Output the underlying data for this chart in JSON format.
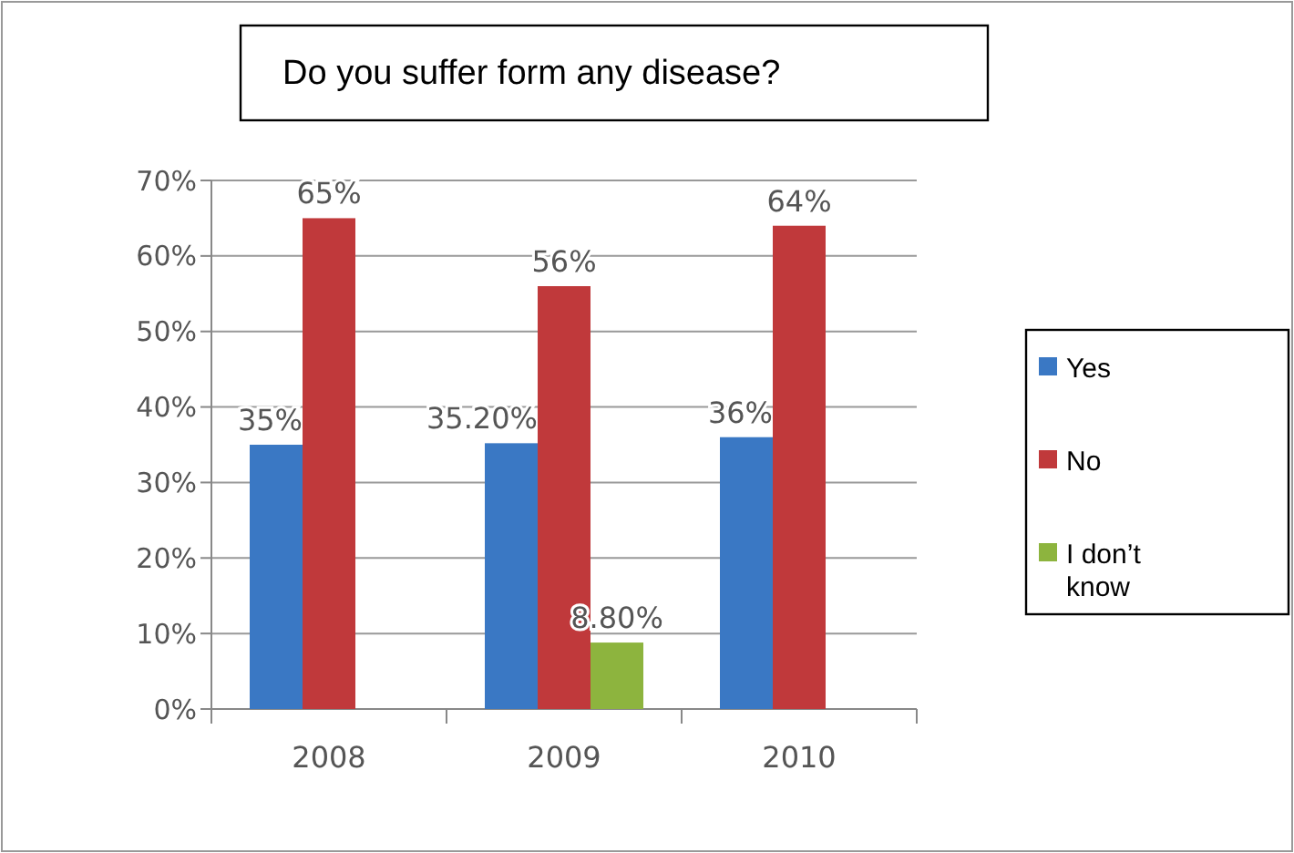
{
  "chart_data": {
    "type": "bar",
    "title": "Do you suffer form any disease?",
    "categories": [
      "2008",
      "2009",
      "2010"
    ],
    "series": [
      {
        "name": "Yes",
        "color": "#3a78c4",
        "values": [
          35,
          35.2,
          36
        ],
        "value_labels": [
          "35%",
          "35.20%",
          "36%"
        ]
      },
      {
        "name": "No",
        "color": "#c0393b",
        "values": [
          65,
          56,
          64
        ],
        "value_labels": [
          "65%",
          "56%",
          "64%"
        ]
      },
      {
        "name": "I don’t know",
        "color": "#8db43e",
        "values": [
          null,
          8.8,
          null
        ],
        "value_labels": [
          null,
          "8.80%",
          null
        ]
      }
    ],
    "ylim": [
      0,
      70
    ],
    "yticks": [
      {
        "value": 0,
        "label": "0%"
      },
      {
        "value": 10,
        "label": "10%"
      },
      {
        "value": 20,
        "label": "20%"
      },
      {
        "value": 30,
        "label": "30%"
      },
      {
        "value": 40,
        "label": "40%"
      },
      {
        "value": 50,
        "label": "50%"
      },
      {
        "value": 60,
        "label": "60%"
      },
      {
        "value": 70,
        "label": "70%"
      }
    ],
    "grid": "y",
    "legend": "right"
  }
}
